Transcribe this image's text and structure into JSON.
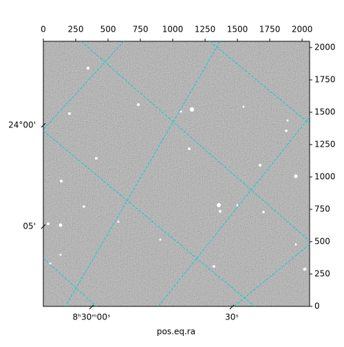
{
  "chart_data": {
    "type": "image",
    "xlabel": "pos.eq.ra",
    "xlim": [
      0,
      2058
    ],
    "ylim": [
      0,
      2048
    ],
    "xticks": [
      0,
      250,
      500,
      750,
      1000,
      1250,
      1500,
      1750,
      2000
    ],
    "yticks": [
      0,
      250,
      500,
      750,
      1000,
      1250,
      1500,
      1750,
      2000
    ],
    "ra_ticks": [
      {
        "value": 372,
        "label": "8ʰ30ᵐ00ˢ"
      },
      {
        "value": 1457,
        "label": "30ˢ"
      }
    ],
    "dec_ticks": [
      {
        "value": 1399,
        "label": "24°00'"
      },
      {
        "value": 617,
        "label": "05'"
      }
    ],
    "grid_color": "#00d0d0",
    "grid_lines": [
      {
        "x": [
          293,
          2058
        ],
        "y": [
          2048,
          505
        ]
      },
      {
        "x": [
          1287,
          2058
        ],
        "y": [
          2048,
          1410
        ]
      },
      {
        "x": [
          0,
          1633
        ],
        "y": [
          1356,
          0
        ]
      },
      {
        "x": [
          0,
          410
        ],
        "y": [
          372,
          0
        ]
      },
      {
        "x": [
          622,
          0
        ],
        "y": [
          2048,
          1367
        ]
      },
      {
        "x": [
          1367,
          170
        ],
        "y": [
          2048,
          0
        ]
      },
      {
        "x": [
          2058,
          888
        ],
        "y": [
          1463,
          0
        ]
      },
      {
        "x": [
          2058,
          1473
        ],
        "y": [
          479,
          0
        ]
      }
    ]
  }
}
